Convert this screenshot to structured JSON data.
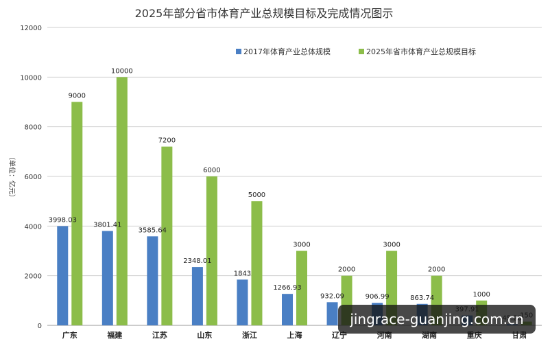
{
  "chart_data": {
    "type": "bar",
    "title": "2025年部分省市体育产业总规模目标及完成情况图示",
    "ylabel": "（单位：亿元）",
    "xlabel": "",
    "ylim": [
      0,
      12000
    ],
    "yticks": [
      0,
      2000,
      4000,
      6000,
      8000,
      10000,
      12000
    ],
    "grid": true,
    "legend_position": "top-right",
    "categories": [
      "广东",
      "福建",
      "江苏",
      "山东",
      "浙江",
      "上海",
      "辽宁",
      "河南",
      "湖南",
      "重庆",
      "甘肃"
    ],
    "series": [
      {
        "name": "2017年体育产业总体规模",
        "color": "#4a7fc4",
        "values": [
          3998.03,
          3801.41,
          3585.64,
          2348.01,
          1843,
          1266.93,
          932.09,
          906.99,
          863.74,
          397.91,
          45.28
        ],
        "labels": [
          "3998.03",
          "3801.41",
          "3585.64",
          "2348.01",
          "1843",
          "1266.93",
          "932.09",
          "906.99",
          "863.74",
          "397.91",
          "45.28"
        ]
      },
      {
        "name": "2025年省市体育产业总规模目标",
        "color": "#8cbd4a",
        "values": [
          9000,
          10000,
          7200,
          6000,
          5000,
          3000,
          2000,
          3000,
          2000,
          1000,
          150
        ],
        "labels": [
          "9000",
          "10000",
          "7200",
          "6000",
          "5000",
          "3000",
          "2000",
          "3000",
          "2000",
          "1000",
          "150"
        ]
      }
    ]
  },
  "watermark": {
    "text": "jingrace-guanjing.com.cn"
  }
}
